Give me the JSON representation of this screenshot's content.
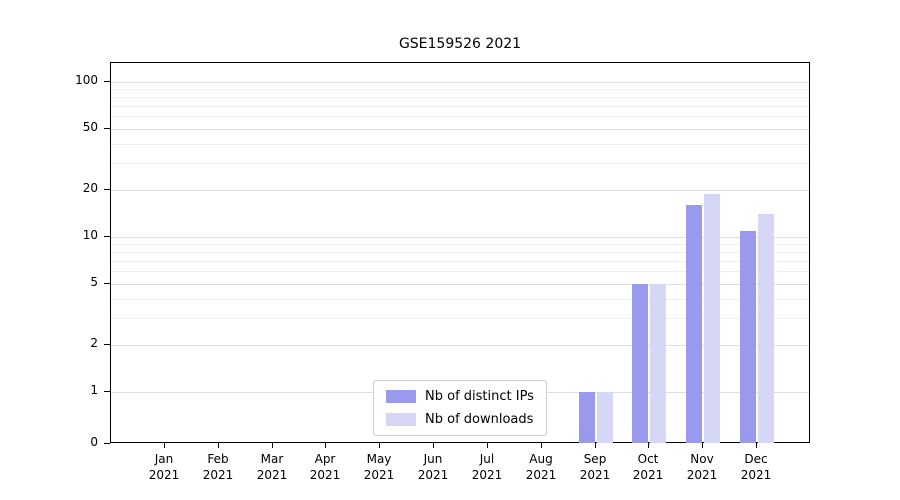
{
  "chart_data": {
    "type": "bar",
    "title": "GSE159526 2021",
    "categories": [
      "Jan",
      "Feb",
      "Mar",
      "Apr",
      "May",
      "Jun",
      "Jul",
      "Aug",
      "Sep",
      "Oct",
      "Nov",
      "Dec"
    ],
    "year": "2021",
    "series": [
      {
        "name": "Nb of distinct IPs",
        "color": "#9999ee",
        "values": [
          0,
          0,
          0,
          0,
          0,
          0,
          0,
          0,
          1,
          5,
          16,
          11
        ]
      },
      {
        "name": "Nb of downloads",
        "color": "#d6d6f7",
        "values": [
          0,
          0,
          0,
          0,
          0,
          0,
          0,
          0,
          1,
          5,
          19,
          14
        ]
      }
    ],
    "xlabel": "",
    "ylabel": "",
    "yticks": [
      0,
      1,
      2,
      5,
      10,
      20,
      50,
      100
    ],
    "minor_yticks": [
      3,
      4,
      6,
      7,
      8,
      9,
      30,
      40,
      60,
      70,
      80,
      90
    ],
    "scale": "symlog",
    "ylim": [
      0,
      133
    ],
    "grid": "horizontal",
    "legend_position": "bottom-center"
  }
}
